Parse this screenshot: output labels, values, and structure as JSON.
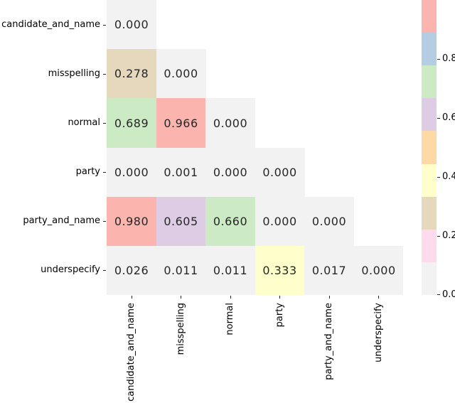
{
  "chart_data": {
    "type": "heatmap",
    "title": "",
    "xlabel": "",
    "ylabel": "",
    "categories": [
      "candidate_and_name",
      "misspelling",
      "normal",
      "party",
      "party_and_name",
      "underspecify"
    ],
    "masked_upper_triangle": true,
    "values": [
      [
        "0.000",
        null,
        null,
        null,
        null,
        null
      ],
      [
        "0.278",
        "0.000",
        null,
        null,
        null,
        null
      ],
      [
        "0.689",
        "0.966",
        "0.000",
        null,
        null,
        null
      ],
      [
        "0.000",
        "0.001",
        "0.000",
        "0.000",
        null,
        null
      ],
      [
        "0.980",
        "0.605",
        "0.660",
        "0.000",
        "0.000",
        null
      ],
      [
        "0.026",
        "0.011",
        "0.011",
        "0.333",
        "0.017",
        "0.000"
      ]
    ],
    "cell_colors": [
      [
        "grey"
      ],
      [
        "tan",
        "grey"
      ],
      [
        "green",
        "red",
        "grey"
      ],
      [
        "grey",
        "grey",
        "grey",
        "grey"
      ],
      [
        "red",
        "purple",
        "green",
        "grey",
        "grey"
      ],
      [
        "grey",
        "grey",
        "grey",
        "yellow",
        "grey",
        "grey"
      ]
    ],
    "palette": {
      "red": "#fbb4ae",
      "blue": "#b3cde3",
      "green": "#ccebc5",
      "purple": "#decbe4",
      "orange": "#fed9a6",
      "yellow": "#ffffcc",
      "tan": "#e5d8bd",
      "pink": "#fddaec",
      "grey": "#f2f2f2"
    },
    "annotation_text_color": "#262626",
    "axis_text_color": "#000000",
    "colorbar": {
      "range": [
        0.0,
        1.0
      ],
      "segments_top_to_bottom": [
        "red",
        "blue",
        "green",
        "purple",
        "orange",
        "yellow",
        "tan",
        "pink",
        "grey"
      ],
      "tick_labels": [
        "0.8",
        "0.6",
        "0.4",
        "0.2",
        "0.0"
      ],
      "tick_values": [
        0.8,
        0.6,
        0.4,
        0.2,
        0.0
      ]
    }
  }
}
